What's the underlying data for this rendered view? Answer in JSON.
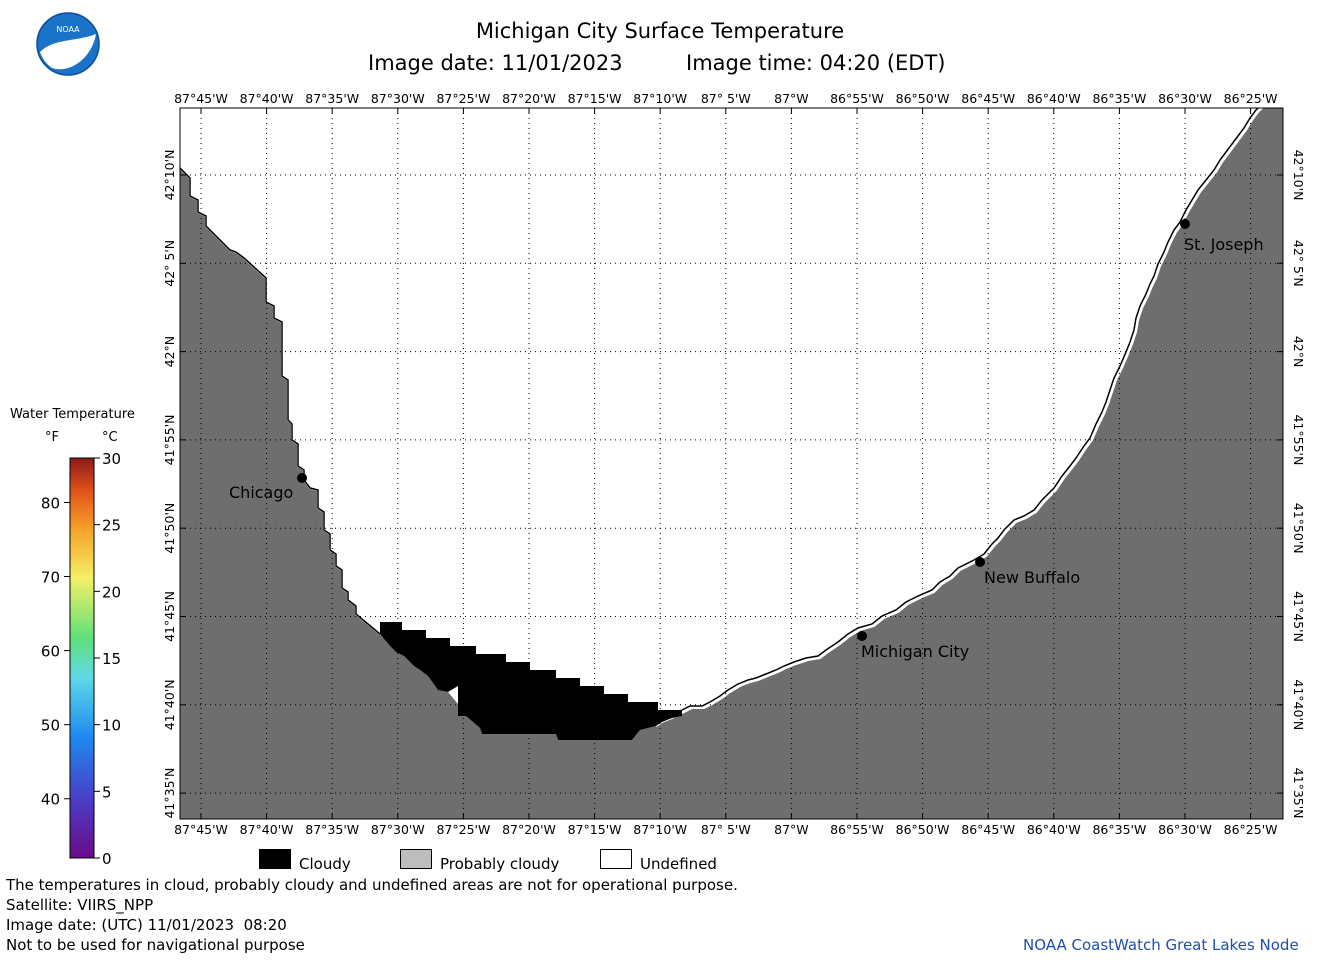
{
  "header": {
    "title": "Michigan City Surface Temperature",
    "date_label": "Image date: 11/01/2023",
    "time_label": "Image time: 04:20 (EDT)"
  },
  "logo": {
    "text": "NOAA"
  },
  "map": {
    "lon_labels": [
      "87°45'W",
      "87°40'W",
      "87°35'W",
      "87°30'W",
      "87°25'W",
      "87°20'W",
      "87°15'W",
      "87°10'W",
      "87° 5'W",
      "87°W",
      "86°55'W",
      "86°50'W",
      "86°45'W",
      "86°40'W",
      "86°35'W",
      "86°30'W",
      "86°25'W"
    ],
    "lat_labels": [
      "42°10'N",
      "42° 5'N",
      "42°N",
      "41°55'N",
      "41°50'N",
      "41°45'N",
      "41°40'N",
      "41°35'N"
    ],
    "cities": [
      {
        "name": "Chicago"
      },
      {
        "name": "St. Joseph"
      },
      {
        "name": "New Buffalo"
      },
      {
        "name": "Michigan City"
      }
    ],
    "colors": {
      "land": "#6e6e6e",
      "cloudy": "#000000",
      "probably_cloudy": "#bdbdbd",
      "undefined": "#ffffff"
    }
  },
  "scale": {
    "title": "Water Temperature",
    "unit_f": "°F",
    "unit_c": "°C",
    "f_ticks": [
      "80",
      "70",
      "60",
      "50",
      "40"
    ],
    "c_ticks": [
      "30",
      "25",
      "20",
      "15",
      "10",
      "5",
      "0"
    ]
  },
  "legend": {
    "cloudy": "Cloudy",
    "probably_cloudy": "Probably cloudy",
    "undefined": "Undefined"
  },
  "footer": {
    "line1": "The temperatures in cloud, probably cloudy and undefined areas are not for operational purpose.",
    "line2": "Satellite: VIIRS_NPP",
    "line3": "Image date: (UTC) 11/01/2023  08:20",
    "line4": "Not to be used for navigational purpose",
    "credit": "NOAA CoastWatch Great Lakes Node"
  }
}
